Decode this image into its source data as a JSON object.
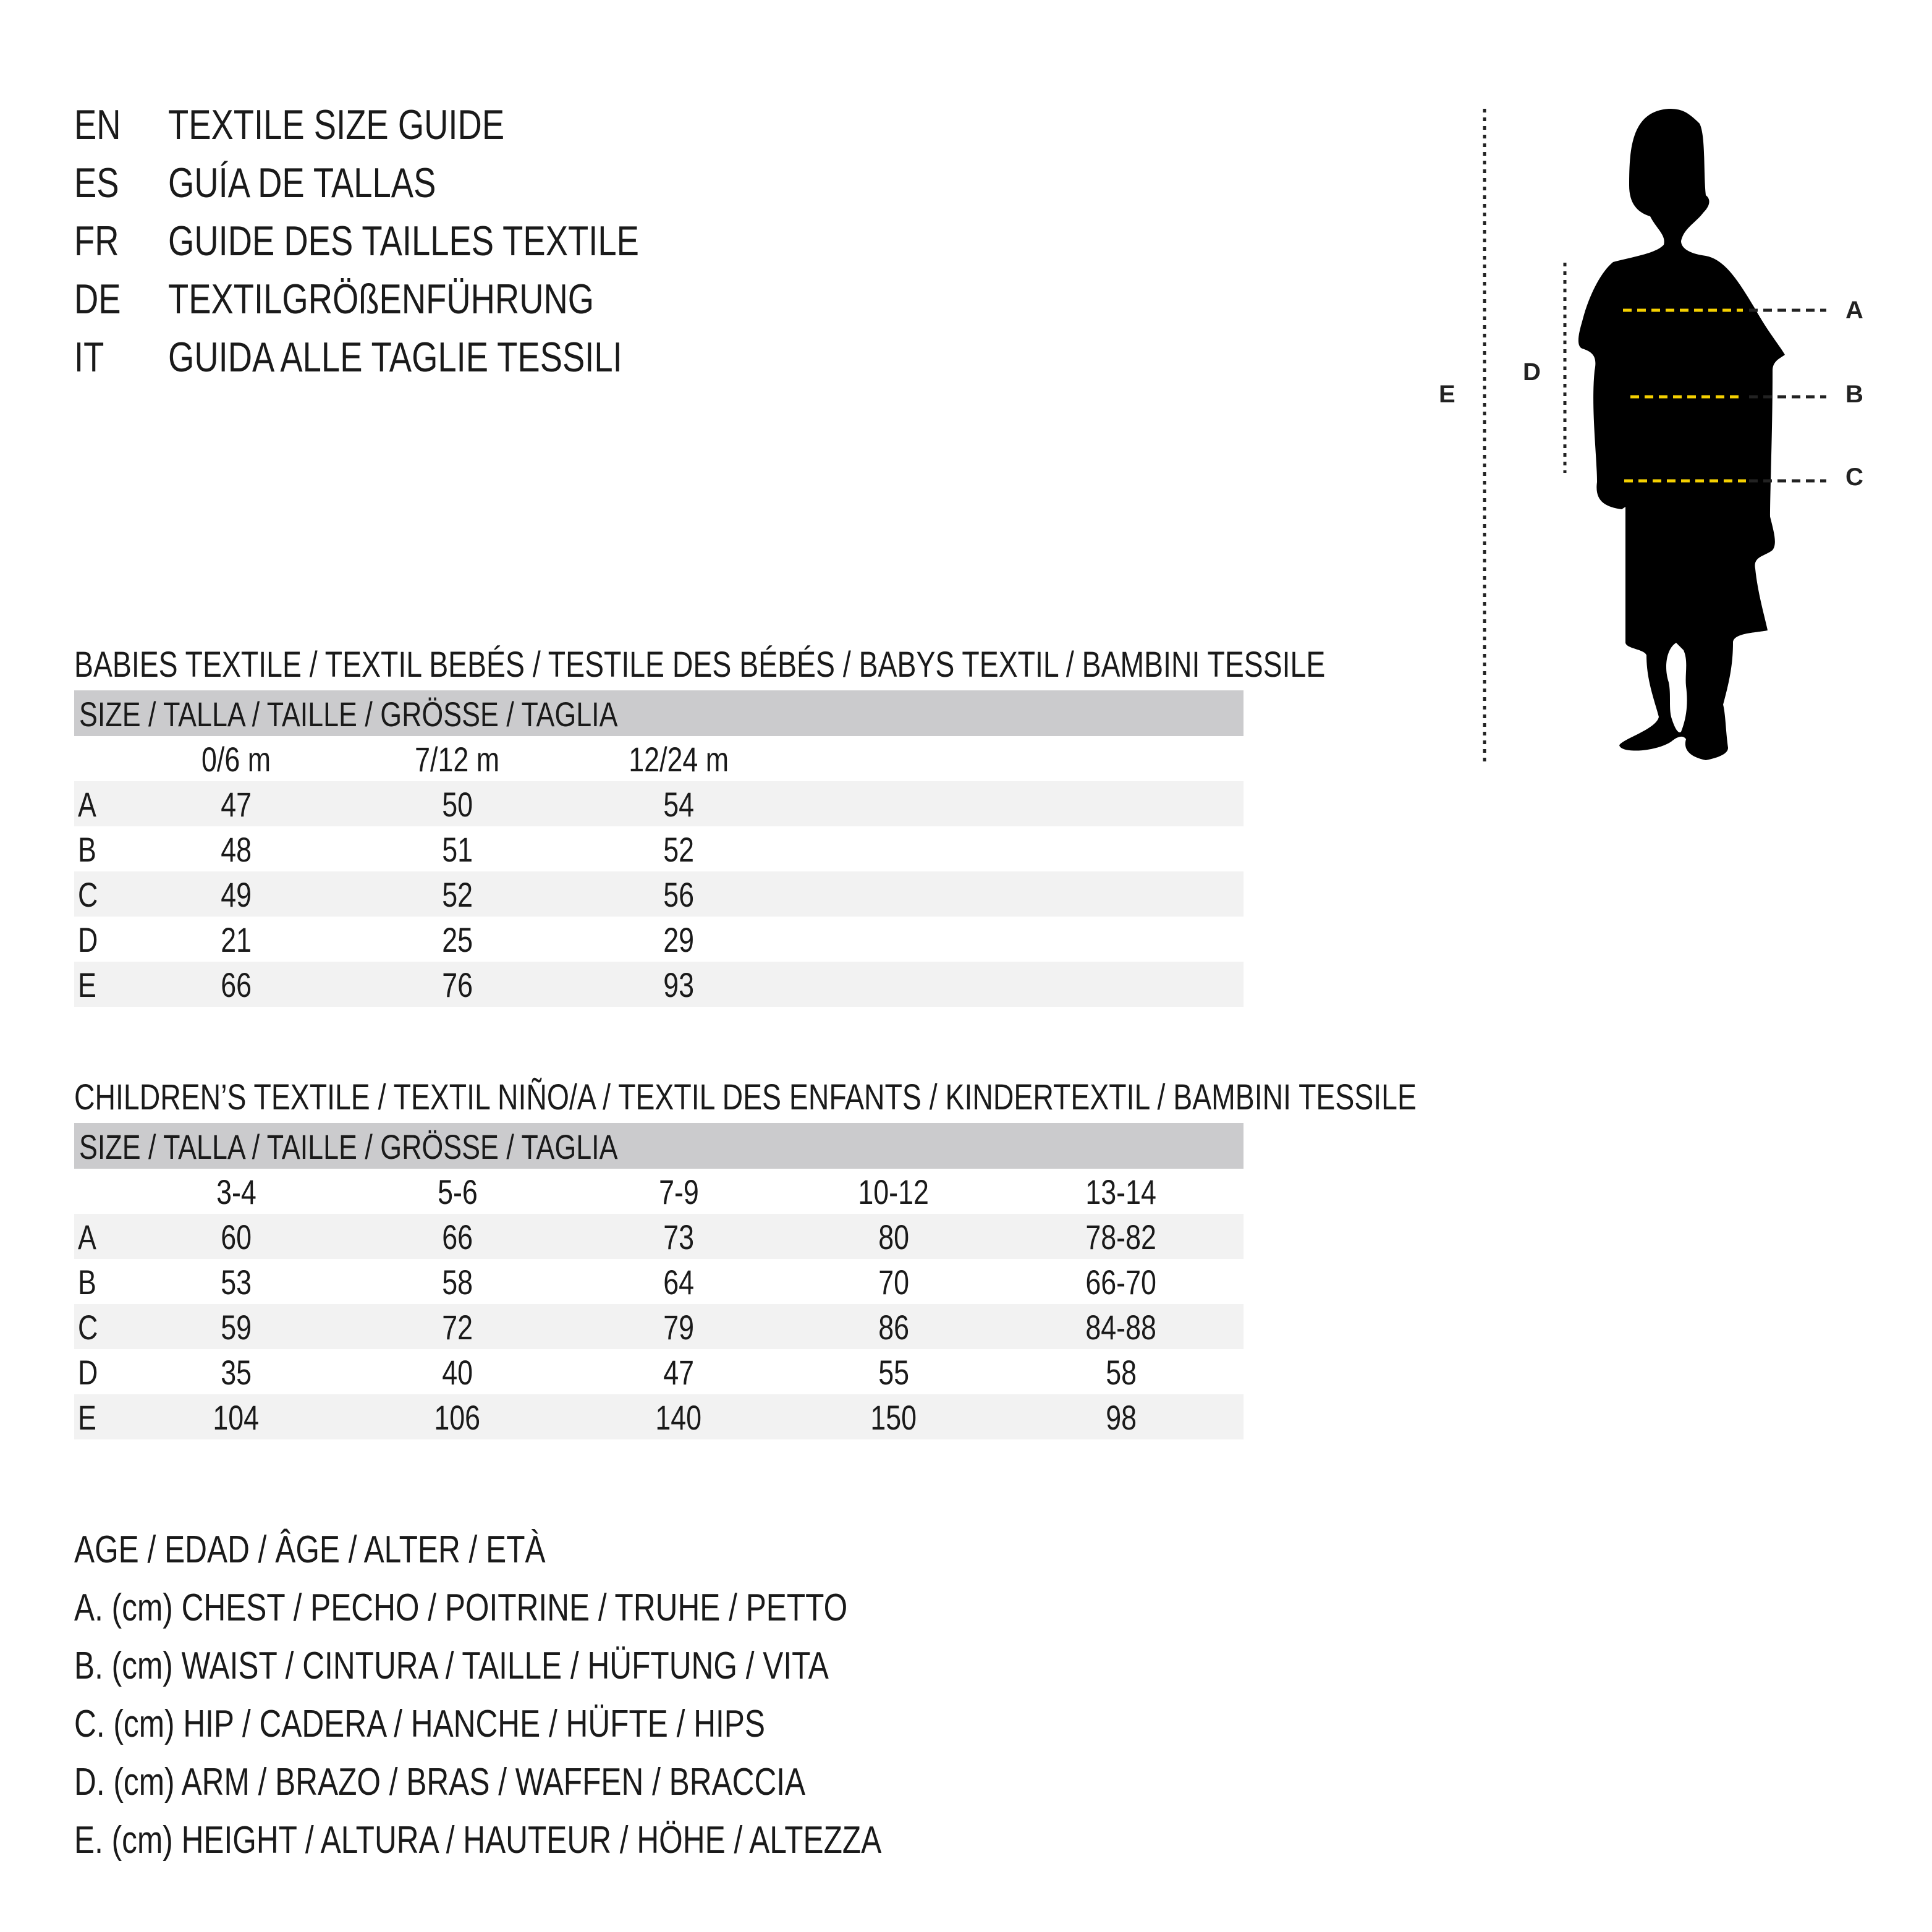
{
  "titles": [
    {
      "code": "EN",
      "text": "TEXTILE SIZE GUIDE"
    },
    {
      "code": "ES",
      "text": "GUÍA DE TALLAS"
    },
    {
      "code": "FR",
      "text": "GUIDE DES TAILLES TEXTILE"
    },
    {
      "code": "DE",
      "text": "TEXTILGRÖßENFÜHRUNG"
    },
    {
      "code": "IT",
      "text": "GUIDA ALLE TAGLIE TESSILI"
    }
  ],
  "babies": {
    "heading": "BABIES TEXTILE / TEXTIL BEBÉS / TESTILE DES BÉBÉS / BABYS TEXTIL / BAMBINI TESSILE",
    "size_header": "SIZE / TALLA / TAILLE / GRÖSSE / TAGLIA",
    "columns": [
      "0/6 m",
      "7/12 m",
      "12/24 m"
    ],
    "rows": [
      {
        "label": "A",
        "values": [
          "47",
          "50",
          "54"
        ]
      },
      {
        "label": "B",
        "values": [
          "48",
          "51",
          "52"
        ]
      },
      {
        "label": "C",
        "values": [
          "49",
          "52",
          "56"
        ]
      },
      {
        "label": "D",
        "values": [
          "21",
          "25",
          "29"
        ]
      },
      {
        "label": "E",
        "values": [
          "66",
          "76",
          "93"
        ]
      }
    ]
  },
  "children": {
    "heading": "CHILDREN’S TEXTILE / TEXTIL NIÑO/A / TEXTIL DES ENFANTS / KINDERTEXTIL / BAMBINI TESSILE",
    "size_header": "SIZE / TALLA / TAILLE / GRÖSSE / TAGLIA",
    "columns": [
      "3-4",
      "5-6",
      "7-9",
      "10-12",
      "13-14"
    ],
    "rows": [
      {
        "label": "A",
        "values": [
          "60",
          "66",
          "73",
          "80",
          "78-82"
        ]
      },
      {
        "label": "B",
        "values": [
          "53",
          "58",
          "64",
          "70",
          "66-70"
        ]
      },
      {
        "label": "C",
        "values": [
          "59",
          "72",
          "79",
          "86",
          "84-88"
        ]
      },
      {
        "label": "D",
        "values": [
          "35",
          "40",
          "47",
          "55",
          "58"
        ]
      },
      {
        "label": "E",
        "values": [
          "104",
          "106",
          "140",
          "150",
          "98"
        ]
      }
    ]
  },
  "legend": [
    "AGE / EDAD / ÂGE / ALTER / ETÀ",
    "A. (cm) CHEST / PECHO / POITRINE / TRUHE / PETTO",
    "B. (cm) WAIST / CINTURA / TAILLE / HÜFTUNG / VITA",
    "C. (cm) HIP / CADERA / HANCHE / HÜFTE / HIPS",
    "D. (cm) ARM / BRAZO / BRAS / WAFFEN / BRACCIA",
    "E. (cm) HEIGHT / ALTURA / HAUTEUR / HÖHE / ALTEZZA"
  ],
  "figure": {
    "labels": {
      "a": "A",
      "b": "B",
      "c": "C",
      "d": "D",
      "e": "E"
    },
    "colors": {
      "measure_line": "#f5d000",
      "silhouette": "#000000",
      "band": "#cbcbcd",
      "row_shade": "#f2f2f2"
    }
  }
}
